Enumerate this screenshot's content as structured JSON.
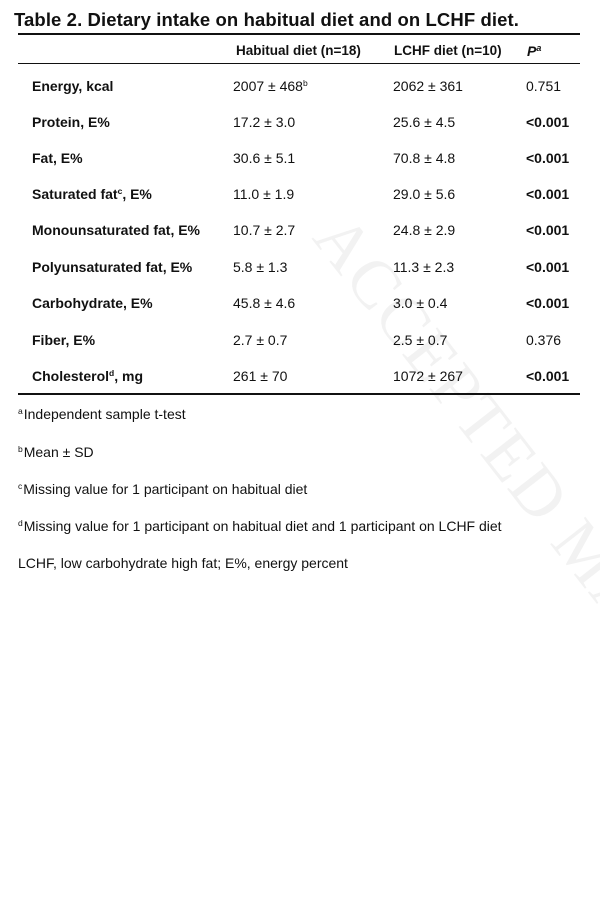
{
  "table": {
    "title": "Table 2. Dietary intake on habitual diet and on LCHF diet.",
    "headers": {
      "habitual": "Habitual diet (n=18)",
      "lchf": "LCHF diet (n=10)",
      "p": "P",
      "p_sup": "a"
    },
    "rows": [
      {
        "label": "Energy, kcal",
        "label_sup": "",
        "label_suffix": "",
        "habitual": "2007 ± 468",
        "habitual_sup": "b",
        "lchf": "2062 ± 361",
        "p": "0.751"
      },
      {
        "label": "Protein, E%",
        "label_sup": "",
        "label_suffix": "",
        "habitual": "17.2 ± 3.0",
        "habitual_sup": "",
        "lchf": "25.6 ± 4.5",
        "p": "<0.001"
      },
      {
        "label": "Fat, E%",
        "label_sup": "",
        "label_suffix": "",
        "habitual": "30.6 ± 5.1",
        "habitual_sup": "",
        "lchf": "70.8 ± 4.8",
        "p": "<0.001"
      },
      {
        "label": "Saturated fat",
        "label_sup": "c",
        "label_suffix": ", E%",
        "habitual": "11.0 ± 1.9",
        "habitual_sup": "",
        "lchf": "29.0 ± 5.6",
        "p": "<0.001"
      },
      {
        "label": "Monounsaturated fat, E%",
        "label_sup": "",
        "label_suffix": "",
        "habitual": "10.7 ± 2.7",
        "habitual_sup": "",
        "lchf": "24.8 ± 2.9",
        "p": "<0.001"
      },
      {
        "label": "Polyunsaturated fat, E%",
        "label_sup": "",
        "label_suffix": "",
        "habitual": "5.8 ± 1.3",
        "habitual_sup": "",
        "lchf": "11.3 ± 2.3",
        "p": "<0.001"
      },
      {
        "label": "Carbohydrate, E%",
        "label_sup": "",
        "label_suffix": "",
        "habitual": "45.8 ± 4.6",
        "habitual_sup": "",
        "lchf": "3.0 ± 0.4",
        "p": "<0.001"
      },
      {
        "label": "Fiber, E%",
        "label_sup": "",
        "label_suffix": "",
        "habitual": "2.7 ± 0.7",
        "habitual_sup": "",
        "lchf": "2.5 ± 0.7",
        "p": "0.376"
      },
      {
        "label": "Cholesterol",
        "label_sup": "d",
        "label_suffix": ", mg",
        "habitual": "261 ± 70",
        "habitual_sup": "",
        "lchf": "1072 ± 267",
        "p": "<0.001"
      }
    ],
    "footnotes": [
      {
        "mark": "a",
        "text": "Independent sample t-test"
      },
      {
        "mark": "b",
        "text": "Mean ± SD"
      },
      {
        "mark": "c",
        "text": "Missing value for 1 participant on habitual diet"
      },
      {
        "mark": "d",
        "text": "Missing value for 1 participant on habitual diet and 1 participant on LCHF diet"
      },
      {
        "mark": "",
        "text": "LCHF, low carbohydrate high fat; E%, energy percent"
      }
    ]
  },
  "watermark": "ACCEPTED MANUSCRIPT"
}
